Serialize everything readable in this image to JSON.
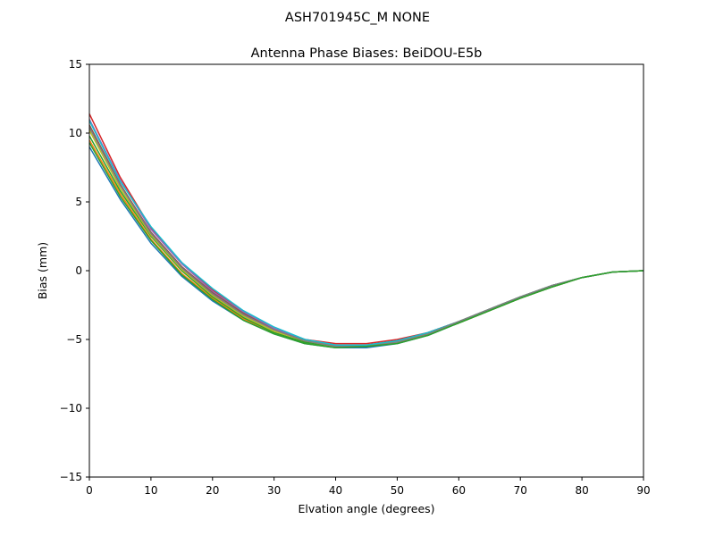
{
  "suptitle": "ASH701945C_M    NONE",
  "chart_data": {
    "type": "line",
    "title": "Antenna Phase Biases: BeiDOU-E5b",
    "xlabel": "Elvation angle (degrees)",
    "ylabel": "Bias (mm)",
    "xlim": [
      0,
      90
    ],
    "ylim": [
      -15,
      15
    ],
    "xticks": [
      0,
      10,
      20,
      30,
      40,
      50,
      60,
      70,
      80,
      90
    ],
    "yticks": [
      -15,
      -10,
      -5,
      0,
      5,
      10,
      15
    ],
    "ytick_labels": [
      "−15",
      "−10",
      "−5",
      "0",
      "5",
      "10",
      "15"
    ],
    "xtick_labels": [
      "0",
      "10",
      "20",
      "30",
      "40",
      "50",
      "60",
      "70",
      "80",
      "90"
    ],
    "grid": false,
    "x": [
      0,
      5,
      10,
      15,
      20,
      25,
      30,
      35,
      40,
      45,
      50,
      55,
      60,
      65,
      70,
      75,
      80,
      85,
      90
    ],
    "series": [
      {
        "color": "#1f77b4",
        "values": [
          9.0,
          5.2,
          2.0,
          -0.4,
          -2.2,
          -3.6,
          -4.6,
          -5.3,
          -5.6,
          -5.6,
          -5.3,
          -4.7,
          -3.8,
          -2.9,
          -2.0,
          -1.2,
          -0.5,
          -0.1,
          0.0
        ]
      },
      {
        "color": "#ff7f0e",
        "values": [
          9.5,
          5.6,
          2.3,
          -0.2,
          -2.0,
          -3.5,
          -4.5,
          -5.2,
          -5.5,
          -5.5,
          -5.2,
          -4.6,
          -3.8,
          -2.9,
          -2.0,
          -1.2,
          -0.5,
          -0.1,
          0.0
        ]
      },
      {
        "color": "#2ca02c",
        "values": [
          9.8,
          5.8,
          2.5,
          0.0,
          -1.9,
          -3.4,
          -4.5,
          -5.2,
          -5.5,
          -5.5,
          -5.2,
          -4.6,
          -3.8,
          -2.9,
          -2.0,
          -1.2,
          -0.5,
          -0.1,
          0.0
        ]
      },
      {
        "color": "#d62728",
        "values": [
          11.4,
          6.8,
          3.1,
          0.6,
          -1.4,
          -3.0,
          -4.2,
          -5.0,
          -5.3,
          -5.3,
          -5.0,
          -4.5,
          -3.7,
          -2.8,
          -1.9,
          -1.1,
          -0.5,
          -0.1,
          0.0
        ]
      },
      {
        "color": "#9467bd",
        "values": [
          11.0,
          6.6,
          3.0,
          0.5,
          -1.5,
          -3.0,
          -4.2,
          -5.0,
          -5.4,
          -5.4,
          -5.1,
          -4.5,
          -3.7,
          -2.8,
          -1.9,
          -1.1,
          -0.5,
          -0.1,
          0.0
        ]
      },
      {
        "color": "#8c564b",
        "values": [
          10.6,
          6.3,
          2.8,
          0.3,
          -1.6,
          -3.1,
          -4.3,
          -5.1,
          -5.4,
          -5.4,
          -5.1,
          -4.5,
          -3.7,
          -2.8,
          -1.9,
          -1.1,
          -0.5,
          -0.1,
          0.0
        ]
      },
      {
        "color": "#bcbd22",
        "values": [
          10.2,
          6.0,
          2.6,
          0.1,
          -1.8,
          -3.3,
          -4.4,
          -5.1,
          -5.5,
          -5.5,
          -5.2,
          -4.6,
          -3.7,
          -2.8,
          -1.9,
          -1.1,
          -0.5,
          -0.1,
          0.0
        ]
      },
      {
        "color": "#17becf",
        "values": [
          10.9,
          6.5,
          3.2,
          0.6,
          -1.3,
          -2.9,
          -4.1,
          -5.0,
          -5.4,
          -5.4,
          -5.1,
          -4.5,
          -3.7,
          -2.8,
          -1.9,
          -1.1,
          -0.5,
          -0.1,
          0.0
        ]
      },
      {
        "color": "#7f7f7f",
        "values": [
          10.4,
          6.2,
          2.7,
          0.2,
          -1.7,
          -3.2,
          -4.3,
          -5.1,
          -5.5,
          -5.5,
          -5.2,
          -4.6,
          -3.7,
          -2.8,
          -1.9,
          -1.1,
          -0.5,
          -0.1,
          0.0
        ]
      },
      {
        "color": "#2ca02c",
        "values": [
          9.3,
          5.4,
          2.2,
          -0.3,
          -2.1,
          -3.6,
          -4.6,
          -5.3,
          -5.6,
          -5.5,
          -5.3,
          -4.7,
          -3.8,
          -2.9,
          -2.0,
          -1.2,
          -0.5,
          -0.1,
          0.0
        ]
      }
    ]
  }
}
